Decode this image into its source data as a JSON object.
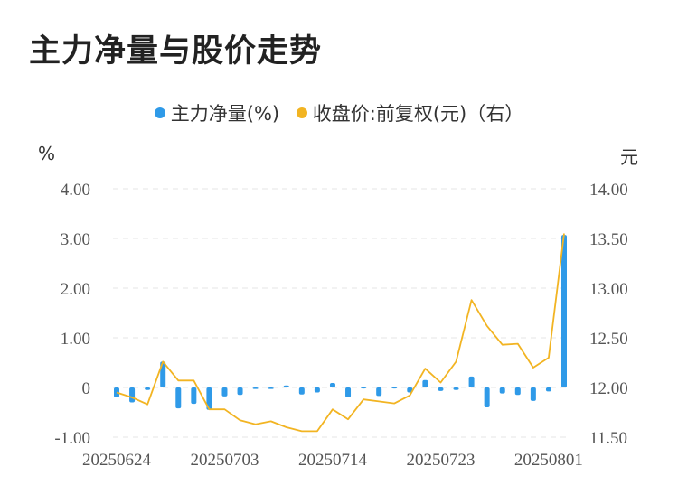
{
  "title": "主力净量与股价走势",
  "legend": {
    "series1": "主力净量(%)",
    "series2": "收盘价:前复权(元)（右）"
  },
  "units": {
    "left": "%",
    "right": "元"
  },
  "colors": {
    "bar": "#2f9ae8",
    "line": "#f2b422",
    "grid": "#e6e6e6"
  },
  "chart_data": {
    "type": "bar",
    "x_tick_labels": [
      "20250624",
      "20250703",
      "20250714",
      "20250723",
      "20250801"
    ],
    "y_left_ticks": [
      "-1.00",
      "0",
      "1.00",
      "2.00",
      "3.00",
      "4.00"
    ],
    "y_right_ticks": [
      "11.50",
      "12.00",
      "12.50",
      "13.00",
      "13.50",
      "14.00"
    ],
    "ylim_left": [
      -1,
      4
    ],
    "ylim_right": [
      11.5,
      14
    ],
    "series": [
      {
        "name": "主力净量(%)",
        "type": "bar",
        "values": [
          -0.2,
          -0.3,
          -0.05,
          0.52,
          -0.42,
          -0.33,
          -0.45,
          -0.18,
          -0.15,
          -0.03,
          -0.03,
          0.04,
          -0.14,
          -0.1,
          0.09,
          -0.2,
          -0.02,
          -0.17,
          -0.02,
          -0.1,
          0.15,
          -0.07,
          -0.05,
          0.22,
          -0.4,
          -0.12,
          -0.15,
          -0.27,
          -0.08,
          3.07
        ]
      },
      {
        "name": "收盘价:前复权(元)（右）",
        "type": "line",
        "values": [
          11.95,
          11.9,
          11.83,
          12.26,
          12.07,
          12.07,
          11.78,
          11.78,
          11.67,
          11.63,
          11.66,
          11.6,
          11.56,
          11.56,
          11.78,
          11.68,
          11.88,
          11.86,
          11.84,
          11.92,
          12.19,
          12.05,
          12.26,
          12.88,
          12.62,
          12.43,
          12.44,
          12.2,
          12.3,
          13.55
        ]
      }
    ]
  }
}
